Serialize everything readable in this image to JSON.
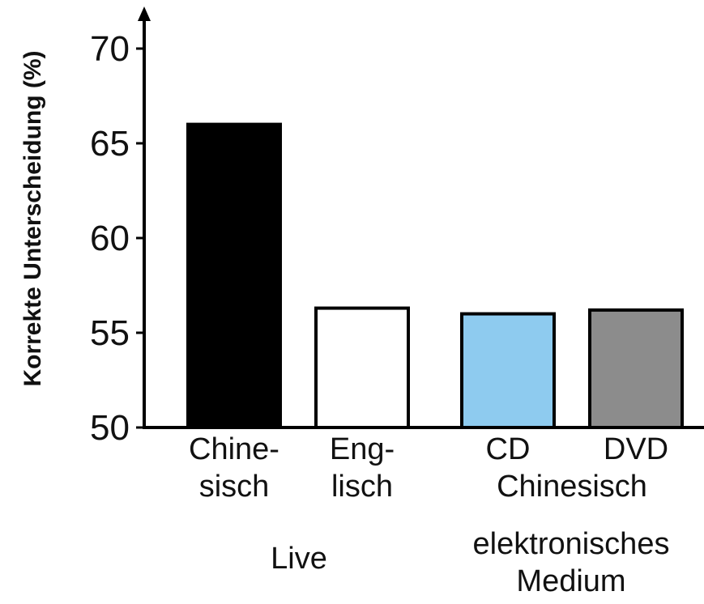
{
  "chart_data": {
    "type": "bar",
    "title": "",
    "xlabel": "",
    "ylabel": "Korrekte Unterscheidung (%)",
    "ylim": [
      50,
      70
    ],
    "yticks": [
      50,
      55,
      60,
      65,
      70
    ],
    "grid": false,
    "categories": [
      [
        "Chine-",
        "sisch"
      ],
      [
        "Eng-",
        "lisch"
      ],
      [
        "CD"
      ],
      [
        "DVD"
      ]
    ],
    "group_label_cd_dvd": "Chinesisch",
    "groups": [
      {
        "lines": [
          "Live"
        ]
      },
      {
        "lines": [
          "elektronisches",
          "Medium"
        ]
      }
    ],
    "values": [
      66,
      56.3,
      56,
      56.2
    ],
    "colors": [
      "#000000",
      "#ffffff",
      "#8ecbef",
      "#8c8c8c"
    ]
  }
}
